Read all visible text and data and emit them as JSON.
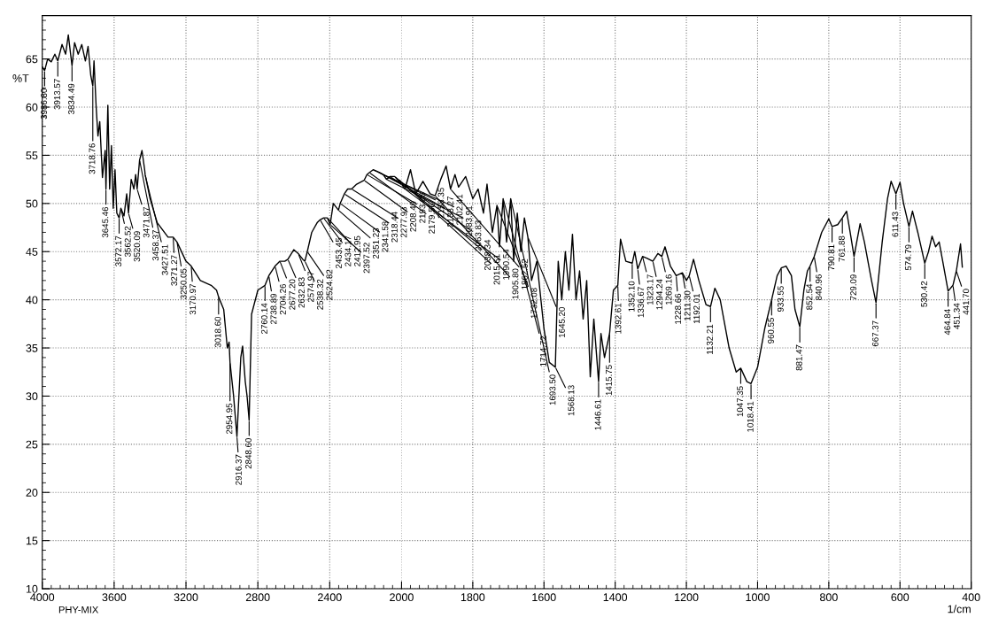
{
  "chart_data": [
    {
      "type": "line",
      "ylabel": "%T",
      "xlim": [
        4000,
        2000
      ],
      "ylim": [
        10,
        69.5
      ],
      "xticks": [
        4000,
        3600,
        3200,
        2800,
        2400
      ],
      "yticks": [
        10,
        15,
        20,
        25,
        30,
        35,
        40,
        45,
        50,
        55,
        60,
        65
      ],
      "grid": true,
      "x": [
        4000,
        3986.8,
        3970,
        3950,
        3930,
        3913.57,
        3890,
        3870,
        3855,
        3834.49,
        3820,
        3800,
        3780,
        3760,
        3745,
        3730,
        3718.76,
        3712,
        3700,
        3690,
        3680,
        3665,
        3650,
        3645.46,
        3635,
        3625,
        3615,
        3605,
        3595,
        3585,
        3572.17,
        3562.52,
        3545,
        3530,
        3520.09,
        3505,
        3490,
        3480,
        3471.87,
        3458.37,
        3445,
        3430,
        3427.51,
        3400,
        3360,
        3300,
        3271.27,
        3250.05,
        3200,
        3170.97,
        3120,
        3060,
        3030,
        3018.6,
        2990,
        2970,
        2960,
        2954.95,
        2935,
        2916.37,
        2895,
        2885,
        2870,
        2860,
        2848.6,
        2835,
        2800,
        2760.14,
        2738.89,
        2704.26,
        2677.2,
        2650,
        2632.83,
        2600,
        2574.97,
        2550,
        2538.32,
        2524.82,
        2500,
        2470,
        2453.45,
        2434.17,
        2412.95,
        2397.52,
        2380,
        2351.23,
        2341.58,
        2318.44,
        2300,
        2277.93,
        2250,
        2208.49,
        2193.06,
        2179.56,
        2158.35,
        2133.27,
        2102.41,
        2083.91,
        2063.83,
        2038.34,
        2000
      ],
      "series": [
        {
          "color": "#000000",
          "values": [
            64.2,
            63.8,
            65,
            64.7,
            65.5,
            64.8,
            66.5,
            65.5,
            67.5,
            64.3,
            66.7,
            65.5,
            66.5,
            64.8,
            66.3,
            63.3,
            62.2,
            64.8,
            60,
            57,
            58.5,
            52.7,
            55.5,
            51.5,
            60.2,
            51.5,
            56,
            49.5,
            53.5,
            49,
            48.5,
            49.5,
            48.7,
            51,
            49,
            52.5,
            51.5,
            53,
            51.5,
            54.5,
            55.5,
            53.5,
            53,
            50.5,
            48,
            46.5,
            46.5,
            46,
            44,
            43.5,
            42,
            41.5,
            41,
            40.3,
            39,
            35,
            35.6,
            33.5,
            30,
            25.8,
            34,
            35.2,
            31.5,
            30,
            27.5,
            38.5,
            41,
            41.5,
            42.5,
            43.5,
            44,
            44,
            44.2,
            45.2,
            44.8,
            44.2,
            44,
            45,
            47,
            48,
            48.3,
            48.5,
            48.5,
            47.8,
            50,
            49.3,
            50,
            51,
            51.5,
            51.5,
            52,
            52.4,
            53,
            53.2,
            53.5,
            53.3,
            53,
            52.5,
            52.8,
            52.8,
            52
          ]
        }
      ],
      "annotations": [
        "PHY-MIX",
        {
          "text": "3986.80",
          "x": 3986.8,
          "y": 63.8
        },
        {
          "text": "3913.57",
          "x": 3913.57,
          "y": 64.8
        },
        {
          "text": "3834.49",
          "x": 3834.49,
          "y": 64.3
        },
        {
          "text": "3718.76",
          "x": 3718.76,
          "y": 62.2
        },
        {
          "text": "3645.46",
          "x": 3645.46,
          "y": 51.5
        },
        {
          "text": "3572.17",
          "x": 3572.17,
          "y": 48.5
        },
        {
          "text": "3562.52",
          "x": 3562.52,
          "y": 49.5
        },
        {
          "text": "3520.09",
          "x": 3520.09,
          "y": 49
        },
        {
          "text": "3471.87",
          "x": 3471.87,
          "y": 51.5
        },
        {
          "text": "3458.37",
          "x": 3458.37,
          "y": 54.5
        },
        {
          "text": "3427.51",
          "x": 3427.51,
          "y": 53
        },
        {
          "text": "3271.27",
          "x": 3271.27,
          "y": 46.5
        },
        {
          "text": "3250.05",
          "x": 3250.05,
          "y": 46
        },
        {
          "text": "3170.97",
          "x": 3170.97,
          "y": 43.5
        },
        {
          "text": "3018.60",
          "x": 3018.6,
          "y": 40.3
        },
        {
          "text": "2954.95",
          "x": 2954.95,
          "y": 33.5
        },
        {
          "text": "2916.37",
          "x": 2916.37,
          "y": 25.8
        },
        {
          "text": "2848.60",
          "x": 2848.6,
          "y": 27.5
        },
        {
          "text": "2760.14",
          "x": 2760.14,
          "y": 41.5
        },
        {
          "text": "2738.89",
          "x": 2738.89,
          "y": 42.5
        },
        {
          "text": "2704.26",
          "x": 2704.26,
          "y": 43.5
        },
        {
          "text": "2677.20",
          "x": 2677.2,
          "y": 44
        },
        {
          "text": "2632.83",
          "x": 2632.83,
          "y": 44.2
        },
        {
          "text": "2574.97",
          "x": 2574.97,
          "y": 44.8
        },
        {
          "text": "2538.32",
          "x": 2538.32,
          "y": 44
        },
        {
          "text": "2524.82",
          "x": 2524.82,
          "y": 45
        },
        {
          "text": "2453.45",
          "x": 2453.45,
          "y": 48.3
        },
        {
          "text": "2434.17",
          "x": 2434.17,
          "y": 48.5
        },
        {
          "text": "2412.95",
          "x": 2412.95,
          "y": 48.5
        },
        {
          "text": "2397.52",
          "x": 2397.52,
          "y": 47.8
        },
        {
          "text": "2351.23",
          "x": 2351.23,
          "y": 49.3
        },
        {
          "text": "2341.58",
          "x": 2341.58,
          "y": 50
        },
        {
          "text": "2318.44",
          "x": 2318.44,
          "y": 51
        },
        {
          "text": "2277.93",
          "x": 2277.93,
          "y": 51.5
        },
        {
          "text": "2208.49",
          "x": 2208.49,
          "y": 52.4
        },
        {
          "text": "2193.06",
          "x": 2193.06,
          "y": 53
        },
        {
          "text": "2179.56",
          "x": 2179.56,
          "y": 53.2
        },
        {
          "text": "2158.35",
          "x": 2158.35,
          "y": 53.5
        },
        {
          "text": "2133.27",
          "x": 2133.27,
          "y": 53.3
        },
        {
          "text": "2102.41",
          "x": 2102.41,
          "y": 53
        },
        {
          "text": "2083.91",
          "x": 2083.91,
          "y": 52.5
        },
        {
          "text": "2063.83",
          "x": 2063.83,
          "y": 52.8
        },
        {
          "text": "2038.34",
          "x": 2038.34,
          "y": 52.8
        },
        {
          "text": "2015.61",
          "x": 2015.61,
          "y": 52.5
        }
      ]
    },
    {
      "type": "line",
      "xlabel": "1/cm",
      "xlim": [
        2000,
        400
      ],
      "ylim": [
        10,
        69.5
      ],
      "xticks": [
        2000,
        1800,
        1600,
        1400,
        1200,
        1000,
        800,
        600,
        400
      ],
      "yticks": [
        10,
        15,
        20,
        25,
        30,
        35,
        40,
        45,
        50,
        55,
        60,
        65
      ],
      "grid": true,
      "tick_labels": "x",
      "x": [
        2000,
        1990.54,
        1975,
        1960,
        1940,
        1920,
        1905.8,
        1890,
        1875,
        1862.52,
        1850,
        1840,
        1820,
        1800,
        1785,
        1770,
        1760,
        1745,
        1732.08,
        1725,
        1714.72,
        1705,
        1693.5,
        1685,
        1675,
        1665,
        1655,
        1645.2,
        1635,
        1620,
        1600,
        1585,
        1568.13,
        1560,
        1550,
        1540,
        1530,
        1520,
        1510,
        1500,
        1490,
        1480,
        1470,
        1460,
        1446.61,
        1440,
        1430,
        1415.75,
        1405,
        1392.61,
        1385,
        1370,
        1352.1,
        1345,
        1336.67,
        1323.17,
        1310,
        1294.24,
        1280,
        1269.16,
        1260,
        1245,
        1228.66,
        1211.3,
        1200,
        1192.01,
        1180,
        1165,
        1145,
        1132.21,
        1120,
        1105,
        1080,
        1060,
        1047.35,
        1030,
        1018.41,
        1000,
        980,
        960.55,
        945,
        933.55,
        920,
        905,
        895,
        881.47,
        870,
        860,
        852.54,
        840.96,
        820,
        800,
        790.81,
        775,
        761.88,
        750,
        740,
        729.09,
        712,
        700,
        680,
        667.37,
        650,
        635,
        625,
        611.43,
        600,
        590,
        574.79,
        565,
        550,
        530.42,
        520,
        510,
        500,
        490,
        480,
        464.84,
        451.34,
        441.7,
        430,
        425
      ],
      "series": [
        {
          "color": "#000000",
          "values": [
            52,
            51.5,
            53.5,
            51,
            52.3,
            51,
            50.8,
            52.5,
            53.9,
            51.5,
            53,
            51.7,
            52.8,
            50.5,
            51.5,
            49,
            52,
            47,
            49.8,
            45.5,
            50.5,
            46,
            50.5,
            44,
            49,
            45,
            48.5,
            46.5,
            42,
            44,
            37,
            33.5,
            33,
            44,
            40,
            45,
            41,
            46.8,
            40,
            43,
            38,
            42,
            32,
            38,
            31.5,
            36.5,
            34,
            36.5,
            41,
            41.5,
            46.3,
            44,
            43.8,
            45,
            43.2,
            44.5,
            44.3,
            44,
            44.8,
            44.5,
            45.5,
            43.5,
            42.5,
            42.8,
            42,
            42.5,
            44.2,
            42,
            39.5,
            39.3,
            41.2,
            40,
            35,
            32.5,
            32.9,
            31.5,
            31.3,
            33,
            37,
            40,
            42.5,
            43.3,
            43.5,
            42.5,
            39,
            37.2,
            41,
            43,
            43.5,
            44.5,
            47,
            48.4,
            47.6,
            47.8,
            48.5,
            49.2,
            47,
            44.5,
            47.9,
            46,
            42,
            39.7,
            46,
            50.5,
            52.3,
            51,
            52.2,
            50,
            47.6,
            49.2,
            47,
            43.8,
            45,
            46.6,
            45.5,
            46,
            44,
            40.9,
            41.5,
            43,
            45.8,
            43.4
          ]
        }
      ],
      "annotations": [
        {
          "text": "1990.54",
          "x": 1990.54,
          "y": 51.5
        },
        {
          "text": "1905.80",
          "x": 1905.8,
          "y": 50.8
        },
        {
          "text": "1862.52",
          "x": 1862.52,
          "y": 51.5
        },
        {
          "text": "1732.08",
          "x": 1732.08,
          "y": 49.8
        },
        {
          "text": "1714.72",
          "x": 1714.72,
          "y": 50.5
        },
        {
          "text": "1693.50",
          "x": 1693.5,
          "y": 50.5
        },
        {
          "text": "1645.20",
          "x": 1645.2,
          "y": 46.5
        },
        {
          "text": "1568.13",
          "x": 1568.13,
          "y": 33
        },
        {
          "text": "1446.61",
          "x": 1446.61,
          "y": 31.5
        },
        {
          "text": "1415.75",
          "x": 1415.75,
          "y": 36.5
        },
        {
          "text": "1392.61",
          "x": 1392.61,
          "y": 41.5
        },
        {
          "text": "1352.10",
          "x": 1352.1,
          "y": 43.8
        },
        {
          "text": "1336.67",
          "x": 1336.67,
          "y": 43.2
        },
        {
          "text": "1323.17",
          "x": 1323.17,
          "y": 44.5
        },
        {
          "text": "1294.24",
          "x": 1294.24,
          "y": 44
        },
        {
          "text": "1269.16",
          "x": 1269.16,
          "y": 44.5
        },
        {
          "text": "1228.66",
          "x": 1228.66,
          "y": 42.5
        },
        {
          "text": "1211.30",
          "x": 1211.3,
          "y": 42.8
        },
        {
          "text": "1192.01",
          "x": 1192.01,
          "y": 42.5
        },
        {
          "text": "1132.21",
          "x": 1132.21,
          "y": 39.3
        },
        {
          "text": "1047.35",
          "x": 1047.35,
          "y": 32.9
        },
        {
          "text": "1018.41",
          "x": 1018.41,
          "y": 31.3
        },
        {
          "text": "960.55",
          "x": 960.55,
          "y": 40
        },
        {
          "text": "933.55",
          "x": 933.55,
          "y": 43.3
        },
        {
          "text": "881.47",
          "x": 881.47,
          "y": 37.2
        },
        {
          "text": "852.54",
          "x": 852.54,
          "y": 43.5
        },
        {
          "text": "840.96",
          "x": 840.96,
          "y": 44.5
        },
        {
          "text": "790.81",
          "x": 790.81,
          "y": 47.6
        },
        {
          "text": "761.88",
          "x": 761.88,
          "y": 48.5
        },
        {
          "text": "729.09",
          "x": 729.09,
          "y": 44.5
        },
        {
          "text": "667.37",
          "x": 667.37,
          "y": 39.7
        },
        {
          "text": "611.43",
          "x": 611.43,
          "y": 51
        },
        {
          "text": "574.79",
          "x": 574.79,
          "y": 47.6
        },
        {
          "text": "530.42",
          "x": 530.42,
          "y": 43.8
        },
        {
          "text": "464.84",
          "x": 464.84,
          "y": 40.9
        },
        {
          "text": "451.34",
          "x": 451.34,
          "y": 41.5
        },
        {
          "text": "441.70",
          "x": 441.7,
          "y": 43
        }
      ]
    }
  ]
}
